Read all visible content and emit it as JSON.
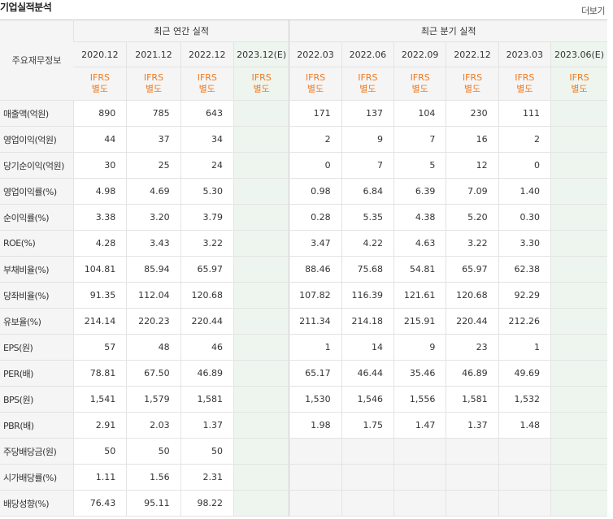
{
  "page": {
    "title": "기업실적분석",
    "more_label": "더보기"
  },
  "table": {
    "corner_label": "주요재무정보",
    "groups": {
      "annual": "최근 연간 실적",
      "quarterly": "최근 분기 실적"
    },
    "annual_periods": [
      "2020.12",
      "2021.12",
      "2022.12",
      "2023.12(E)"
    ],
    "quarterly_periods": [
      "2022.03",
      "2022.06",
      "2022.09",
      "2022.12",
      "2023.03",
      "2023.06(E)"
    ],
    "ifrs_label": [
      "IFRS",
      "별도"
    ],
    "rows": [
      {
        "label": "매출액(억원)",
        "values": [
          "890",
          "785",
          "643",
          "",
          "171",
          "137",
          "104",
          "230",
          "111",
          ""
        ]
      },
      {
        "label": "영업이익(억원)",
        "values": [
          "44",
          "37",
          "34",
          "",
          "2",
          "9",
          "7",
          "16",
          "2",
          ""
        ]
      },
      {
        "label": "당기순이익(억원)",
        "values": [
          "30",
          "25",
          "24",
          "",
          "0",
          "7",
          "5",
          "12",
          "0",
          ""
        ]
      },
      {
        "label": "영업이익률(%)",
        "values": [
          "4.98",
          "4.69",
          "5.30",
          "",
          "0.98",
          "6.84",
          "6.39",
          "7.09",
          "1.40",
          ""
        ]
      },
      {
        "label": "순이익률(%)",
        "values": [
          "3.38",
          "3.20",
          "3.79",
          "",
          "0.28",
          "5.35",
          "4.38",
          "5.20",
          "0.30",
          ""
        ]
      },
      {
        "label": "ROE(%)",
        "values": [
          "4.28",
          "3.43",
          "3.22",
          "",
          "3.47",
          "4.22",
          "4.63",
          "3.22",
          "3.30",
          ""
        ]
      },
      {
        "label": "부채비율(%)",
        "values": [
          "104.81",
          "85.94",
          "65.97",
          "",
          "88.46",
          "75.68",
          "54.81",
          "65.97",
          "62.38",
          ""
        ]
      },
      {
        "label": "당좌비율(%)",
        "values": [
          "91.35",
          "112.04",
          "120.68",
          "",
          "107.82",
          "116.39",
          "121.61",
          "120.68",
          "92.29",
          ""
        ]
      },
      {
        "label": "유보율(%)",
        "values": [
          "214.14",
          "220.23",
          "220.44",
          "",
          "211.34",
          "214.18",
          "215.91",
          "220.44",
          "212.26",
          ""
        ]
      },
      {
        "label": "EPS(원)",
        "values": [
          "57",
          "48",
          "46",
          "",
          "1",
          "14",
          "9",
          "23",
          "1",
          ""
        ]
      },
      {
        "label": "PER(배)",
        "values": [
          "78.81",
          "67.50",
          "46.89",
          "",
          "65.17",
          "46.44",
          "35.46",
          "46.89",
          "49.69",
          ""
        ]
      },
      {
        "label": "BPS(원)",
        "values": [
          "1,541",
          "1,579",
          "1,581",
          "",
          "1,530",
          "1,546",
          "1,556",
          "1,581",
          "1,532",
          ""
        ]
      },
      {
        "label": "PBR(배)",
        "values": [
          "2.91",
          "2.03",
          "1.37",
          "",
          "1.98",
          "1.75",
          "1.47",
          "1.37",
          "1.48",
          ""
        ]
      },
      {
        "label": "주당배당금(원)",
        "values": [
          "50",
          "50",
          "50",
          "",
          "",
          "",
          "",
          "",
          "",
          ""
        ]
      },
      {
        "label": "시가배당률(%)",
        "values": [
          "1.11",
          "1.56",
          "2.31",
          "",
          "",
          "",
          "",
          "",
          "",
          ""
        ]
      },
      {
        "label": "배당성향(%)",
        "values": [
          "76.43",
          "95.11",
          "98.22",
          "",
          "",
          "",
          "",
          "",
          "",
          ""
        ]
      }
    ]
  }
}
